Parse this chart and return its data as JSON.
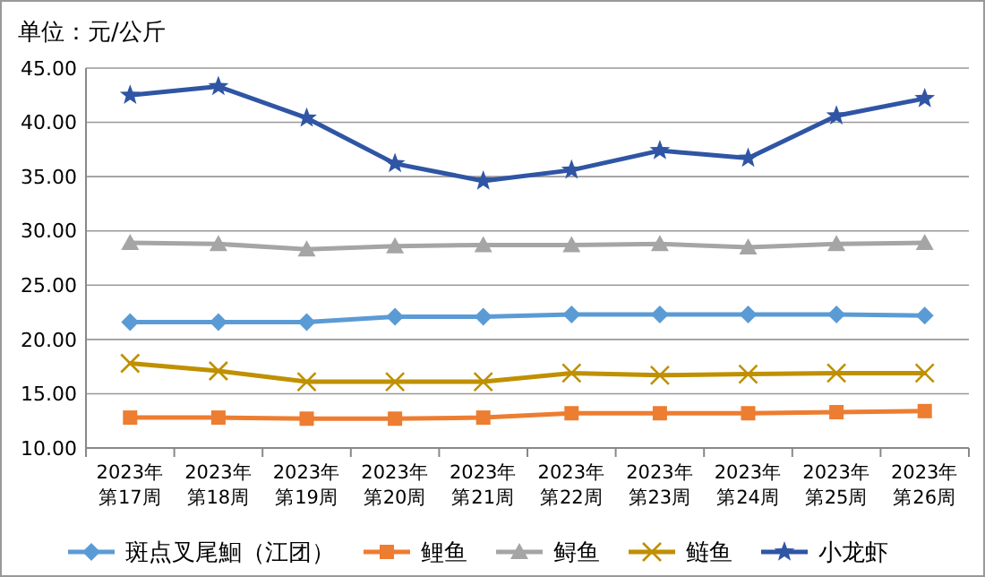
{
  "chart_data": {
    "type": "line",
    "title": "单位：元/公斤",
    "categories": [
      "2023年第17周",
      "2023年第18周",
      "2023年第19周",
      "2023年第20周",
      "2023年第21周",
      "2023年第22周",
      "2023年第23周",
      "2023年第24周",
      "2023年第25周",
      "2023年第26周"
    ],
    "series": [
      {
        "name": "斑点叉尾鮰（江团）",
        "color": "#5b9bd5",
        "marker": "diamond",
        "values": [
          21.6,
          21.6,
          21.6,
          22.1,
          22.1,
          22.3,
          22.3,
          22.3,
          22.3,
          22.2
        ]
      },
      {
        "name": "鲤鱼",
        "color": "#ed7d31",
        "marker": "square",
        "values": [
          12.8,
          12.8,
          12.7,
          12.7,
          12.8,
          13.2,
          13.2,
          13.2,
          13.3,
          13.4
        ]
      },
      {
        "name": "鲟鱼",
        "color": "#a5a5a5",
        "marker": "triangle",
        "values": [
          28.9,
          28.8,
          28.3,
          28.6,
          28.7,
          28.7,
          28.8,
          28.5,
          28.8,
          28.9
        ]
      },
      {
        "name": "鲢鱼",
        "color": "#bf9000",
        "marker": "cross",
        "values": [
          17.8,
          17.1,
          16.1,
          16.1,
          16.1,
          16.9,
          16.7,
          16.8,
          16.9,
          16.9
        ]
      },
      {
        "name": "小龙虾",
        "color": "#2f55a4",
        "marker": "star",
        "values": [
          42.5,
          43.3,
          40.4,
          36.2,
          34.6,
          35.6,
          37.4,
          36.7,
          40.6,
          42.2
        ]
      }
    ],
    "ylim": [
      10,
      45
    ],
    "yticks": [
      {
        "value": 10,
        "label": "10.00"
      },
      {
        "value": 15,
        "label": "15.00"
      },
      {
        "value": 20,
        "label": "20.00"
      },
      {
        "value": 25,
        "label": "25.00"
      },
      {
        "value": 30,
        "label": "30.00"
      },
      {
        "value": 35,
        "label": "35.00"
      },
      {
        "value": 40,
        "label": "40.00"
      },
      {
        "value": 45,
        "label": "45.00"
      }
    ],
    "grid": "y",
    "legend": "bottom"
  }
}
